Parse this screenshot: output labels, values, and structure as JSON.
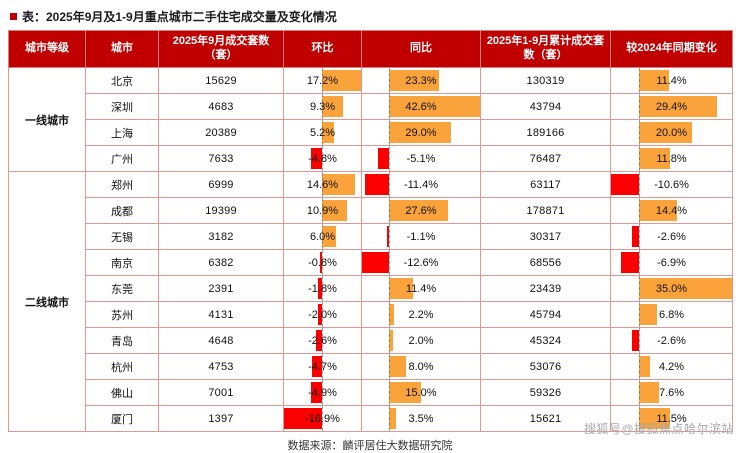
{
  "title": "表：2025年9月及1-9月重点城市二手住宅成交量及变化情况",
  "footer": "数据来源：麟评居住大数据研究院",
  "watermark": "搜狐号@搜狐焦点哈尔滨站",
  "chart_data": {
    "type": "table",
    "title": "2025年9月及1-9月重点城市二手住宅成交量及变化情况",
    "columns": [
      "城市等级",
      "城市",
      "2025年9月成交套数（套）",
      "环比",
      "同比",
      "2025年1-9月累计成交套数（套）",
      "较2024年同期变化"
    ],
    "colors": {
      "header_bg": "#c00000",
      "header_text": "#ffffff",
      "positive_bar": "#f9a33a",
      "negative_bar": "#fb0000",
      "grid_line": "#e39692",
      "accent_red": "#c00000"
    },
    "bar_columns": [
      "mom",
      "yoy",
      "vs2024"
    ],
    "groups": [
      {
        "tier": "一线城市",
        "rows": [
          {
            "city": "北京",
            "sep2025_volume": 15629,
            "mom": 17.2,
            "yoy": 23.3,
            "cum_volume": 130319,
            "vs2024": 11.4
          },
          {
            "city": "深圳",
            "sep2025_volume": 4683,
            "mom": 9.3,
            "yoy": 42.6,
            "cum_volume": 43794,
            "vs2024": 29.4
          },
          {
            "city": "上海",
            "sep2025_volume": 20389,
            "mom": 5.2,
            "yoy": 29.0,
            "cum_volume": 189166,
            "vs2024": 20.0
          },
          {
            "city": "广州",
            "sep2025_volume": 7633,
            "mom": -4.8,
            "yoy": -5.1,
            "cum_volume": 76487,
            "vs2024": 11.8
          }
        ]
      },
      {
        "tier": "二线城市",
        "rows": [
          {
            "city": "郑州",
            "sep2025_volume": 6999,
            "mom": 14.6,
            "yoy": -11.4,
            "cum_volume": 63117,
            "vs2024": -10.6
          },
          {
            "city": "成都",
            "sep2025_volume": 19399,
            "mom": 10.9,
            "yoy": 27.6,
            "cum_volume": 178871,
            "vs2024": 14.4
          },
          {
            "city": "无锡",
            "sep2025_volume": 3182,
            "mom": 6.0,
            "yoy": -1.1,
            "cum_volume": 30317,
            "vs2024": -2.6
          },
          {
            "city": "南京",
            "sep2025_volume": 6382,
            "mom": -0.8,
            "yoy": -12.6,
            "cum_volume": 68556,
            "vs2024": -6.9
          },
          {
            "city": "东莞",
            "sep2025_volume": 2391,
            "mom": -1.8,
            "yoy": 11.4,
            "cum_volume": 23439,
            "vs2024": 35.0
          },
          {
            "city": "苏州",
            "sep2025_volume": 4131,
            "mom": -2.0,
            "yoy": 2.2,
            "cum_volume": 45794,
            "vs2024": 6.8
          },
          {
            "city": "青岛",
            "sep2025_volume": 4648,
            "mom": -2.6,
            "yoy": 2.0,
            "cum_volume": 45324,
            "vs2024": -2.6
          },
          {
            "city": "杭州",
            "sep2025_volume": 4753,
            "mom": -4.7,
            "yoy": 8.0,
            "cum_volume": 53076,
            "vs2024": 4.2
          },
          {
            "city": "佛山",
            "sep2025_volume": 7001,
            "mom": -4.9,
            "yoy": 15.0,
            "cum_volume": 59326,
            "vs2024": 7.6
          },
          {
            "city": "厦门",
            "sep2025_volume": 1397,
            "mom": -16.9,
            "yoy": 3.5,
            "cum_volume": 15621,
            "vs2024": 11.5
          }
        ]
      }
    ]
  }
}
